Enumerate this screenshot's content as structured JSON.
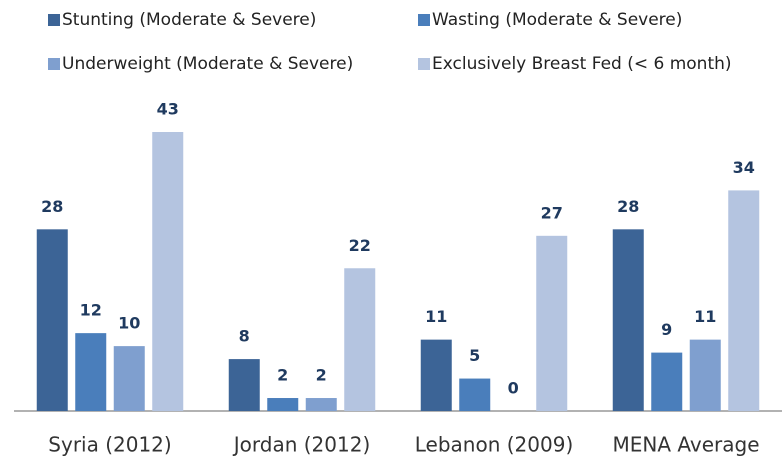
{
  "chart_data": {
    "type": "bar",
    "categories": [
      "Syria (2012)",
      "Jordan (2012)",
      "Lebanon (2009)",
      "MENA Average"
    ],
    "series": [
      {
        "name": "Stunting (Moderate & Severe)",
        "color": "#3c6496",
        "values": [
          28,
          8,
          11,
          28
        ]
      },
      {
        "name": "Wasting (Moderate & Severe)",
        "color": "#4a7ebb",
        "values": [
          12,
          2,
          5,
          9
        ]
      },
      {
        "name": "Underweight (Moderate & Severe)",
        "color": "#7f9fcf",
        "values": [
          10,
          2,
          0,
          11
        ]
      },
      {
        "name": "Exclusively Breast Fed (< 6 month)",
        "color": "#b4c4e0",
        "values": [
          43,
          22,
          27,
          34
        ]
      }
    ]
  }
}
